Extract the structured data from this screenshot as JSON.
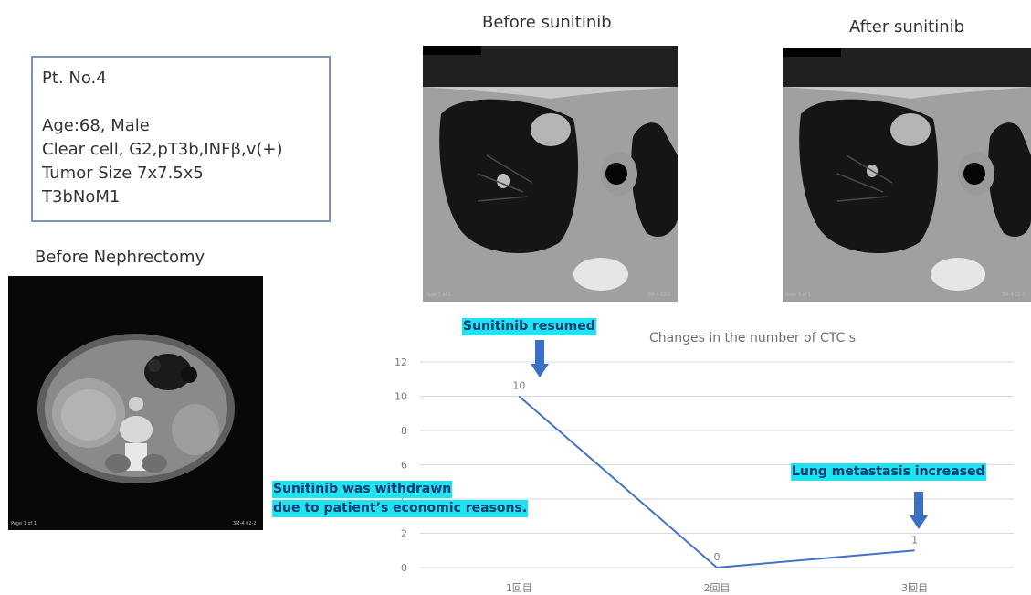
{
  "patient_card": {
    "pt_no": "Pt. No.4",
    "age": "Age:68, Male",
    "histology": "Clear cell, G2,pT3b,INFβ,v(+)",
    "tumor_size": "Tumor Size 7x7.5x5",
    "stage": "T3bNoM1"
  },
  "images": {
    "before_nephrectomy": {
      "caption": "Before Nephrectomy",
      "footer_left": "Page 1 of 1",
      "footer_right": "3M-4 02-2"
    },
    "before_sunitinib": {
      "caption": "Before sunitinib",
      "footer_left": "Page 1 of 1",
      "footer_right": "3M-4 02-2"
    },
    "after_sunitinib": {
      "caption": "After sunitinib",
      "footer_left": "Page 1 of 1",
      "footer_right": "3M-4 02-2"
    }
  },
  "annotations": {
    "resumed": "Sunitinib resumed",
    "withdrawn_line1": "Sunitinib was withdrawn",
    "withdrawn_line2": "due to patient’s economic reasons.",
    "increased": "Lung metastasis increased"
  },
  "colors": {
    "line": "#4472c4",
    "highlight": "#1fe3f0",
    "arrow": "#3a6fc4"
  },
  "chart_data": {
    "type": "line",
    "title": "Changes in the number of CTC s",
    "categories": [
      "1回目",
      "2回目",
      "3回目"
    ],
    "series": [
      {
        "values": [
          10,
          0,
          1
        ],
        "data_labels": [
          "10",
          "0",
          "1"
        ]
      }
    ],
    "ylim": [
      0,
      12
    ],
    "yticks": [
      "0",
      "2",
      "4",
      "6",
      "8",
      "10",
      "12"
    ],
    "grid": true
  }
}
